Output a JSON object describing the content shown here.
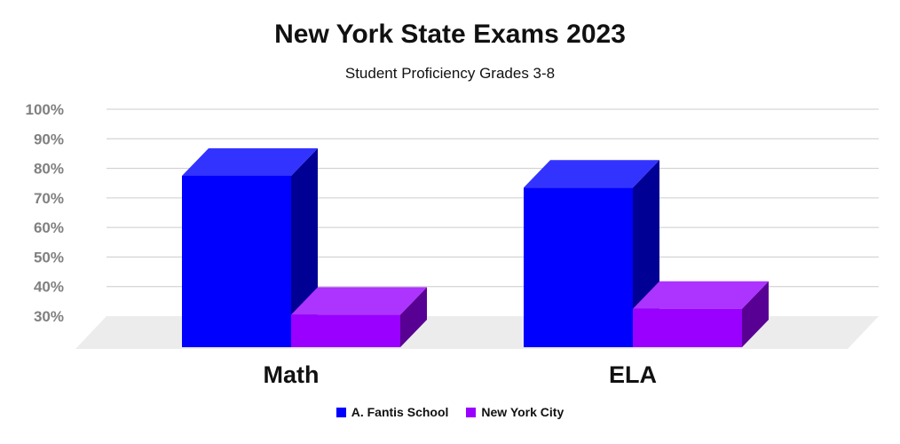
{
  "chart_data": {
    "type": "bar",
    "title": "New York State Exams 2023",
    "subtitle": "Student Proficiency Grades 3-8",
    "categories": [
      "Math",
      "ELA"
    ],
    "series": [
      {
        "name": "A. Fantis School",
        "values": [
          88,
          84
        ],
        "color": "#0000ff"
      },
      {
        "name": "New York City",
        "values": [
          41,
          43
        ],
        "color": "#9900ff"
      }
    ],
    "ylim": [
      30,
      100
    ],
    "yticks": [
      "100%",
      "90%",
      "80%",
      "70%",
      "60%",
      "50%",
      "40%",
      "30%"
    ],
    "ytick_values": [
      100,
      90,
      80,
      70,
      60,
      50,
      40,
      30
    ],
    "grid": true,
    "legend_position": "bottom",
    "style": "3d"
  }
}
